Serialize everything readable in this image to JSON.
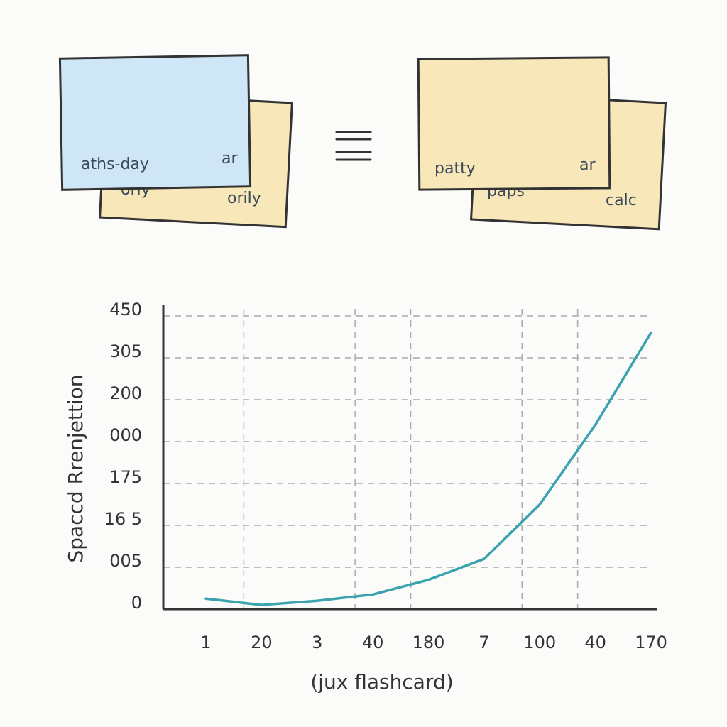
{
  "cards": {
    "left": {
      "back": {
        "text_left": "orly",
        "text_right": "orily"
      },
      "front": {
        "text_left": "aths-day",
        "text_right": "ar"
      }
    },
    "right": {
      "back": {
        "text_left": "paps",
        "text_right": "calc"
      },
      "front": {
        "text_left": "patty",
        "text_right": "ar"
      }
    }
  },
  "chart_data": {
    "type": "line",
    "y_axis_label": "Spaccd Rrenjettion",
    "x_axis_label": "(jux flashcard)",
    "categories": [
      "1",
      "20",
      "3",
      "40",
      "180",
      "7",
      "100",
      "40",
      "170"
    ],
    "series": [
      {
        "color": "#3aa3ad",
        "values": [
          0.25,
          0.1,
          0.2,
          0.35,
          0.7,
          1.2,
          2.5,
          4.4,
          6.6
        ]
      }
    ],
    "ylim": [
      0,
      7
    ],
    "yticks": [
      0,
      {
        "value": 1,
        "label": "005"
      },
      {
        "value": 2,
        "label": "16 5"
      },
      {
        "value": 3,
        "label": "175"
      },
      {
        "value": 4,
        "label": "000"
      },
      {
        "value": 5,
        "label": "200"
      },
      {
        "value": 6,
        "label": "305"
      },
      {
        "value": 7,
        "label": "450"
      }
    ],
    "grid": true
  }
}
